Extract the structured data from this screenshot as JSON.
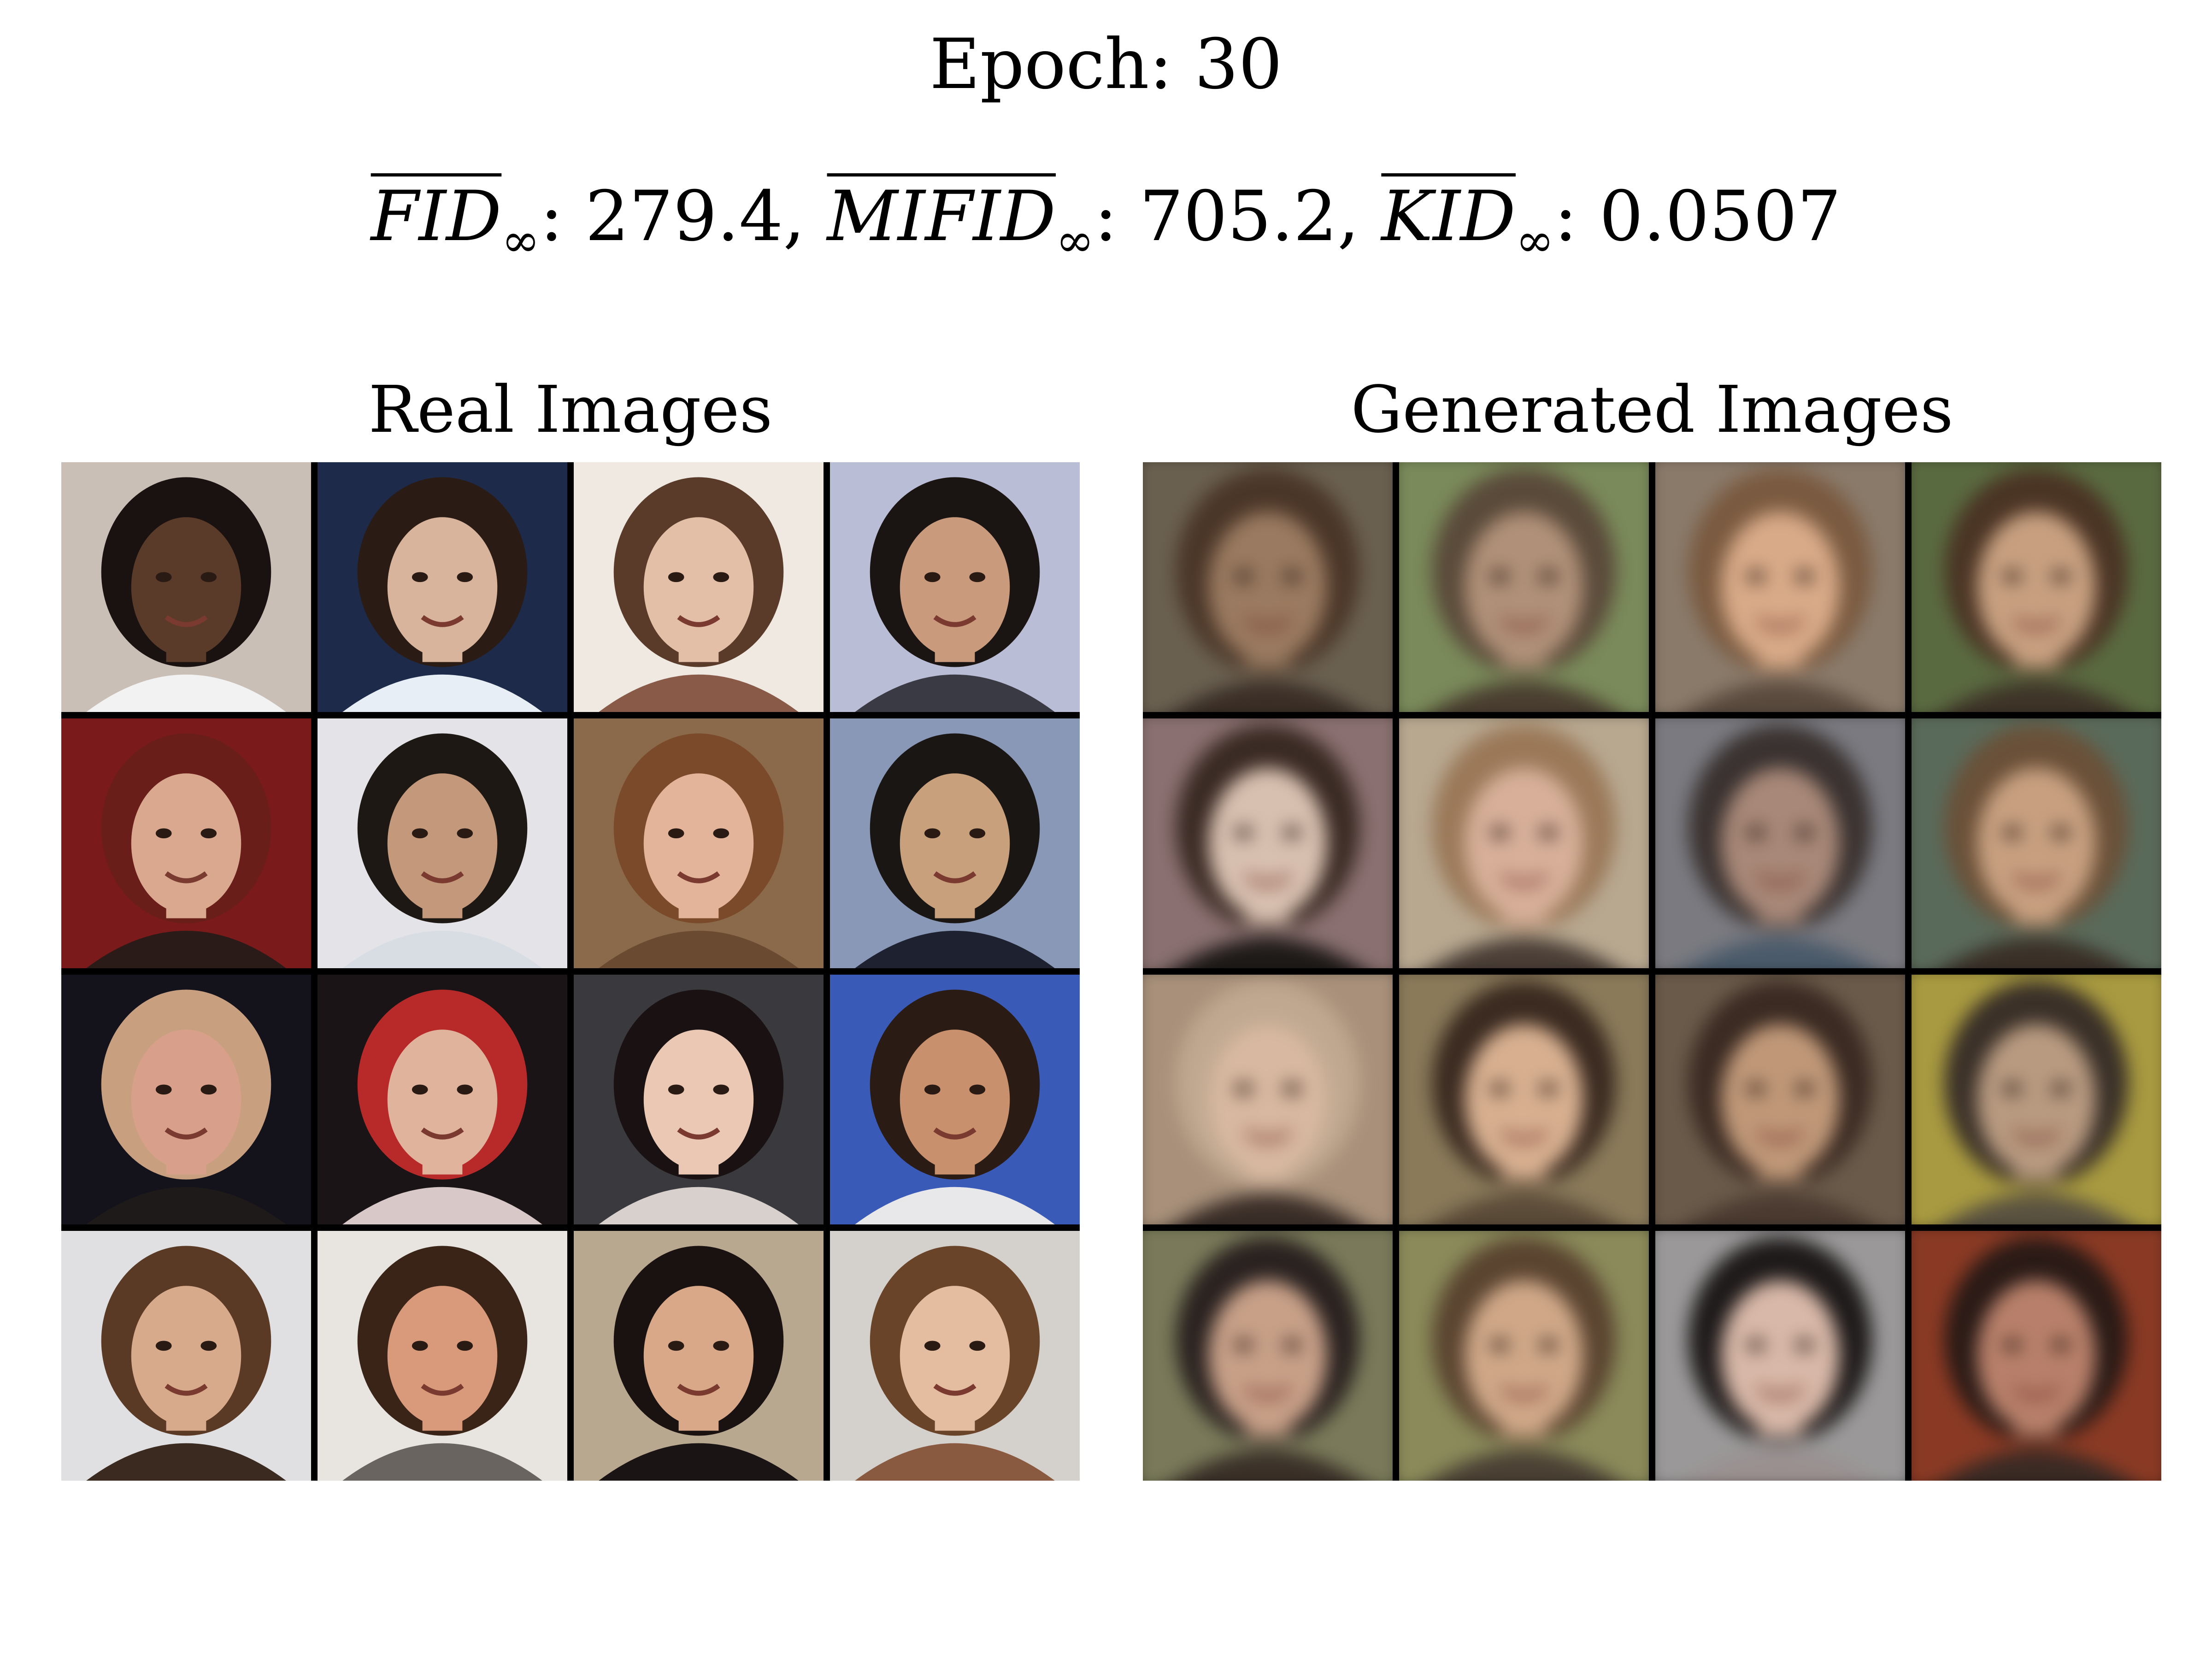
{
  "header": {
    "epoch_label": "Epoch: 30",
    "metrics": [
      {
        "name": "FID",
        "sub": "∞",
        "value": ": 279.4, "
      },
      {
        "name": "MIFID",
        "sub": "∞",
        "value": ": 705.2, "
      },
      {
        "name": "KID",
        "sub": "∞",
        "value": ": 0.0507"
      }
    ]
  },
  "panels": {
    "real_title": "Real Images",
    "generated_title": "Generated Images"
  },
  "grid": {
    "rows": 4,
    "cols": 4
  },
  "real_images": [
    {
      "bg": "#c9bfb6",
      "skin": "#5a3a28",
      "hair": "#1a1210",
      "shirt": "#f2f2f2"
    },
    {
      "bg": "#1d2a4a",
      "skin": "#d8b49c",
      "hair": "#2a1c14",
      "shirt": "#e8eef5"
    },
    {
      "bg": "#efe9e2",
      "skin": "#e4bfa8",
      "hair": "#5a3a28",
      "shirt": "#8a5a48"
    },
    {
      "bg": "#b9bdd6",
      "skin": "#c99a7c",
      "hair": "#1a1412",
      "shirt": "#3a3a44"
    },
    {
      "bg": "#7a1a1a",
      "skin": "#d9a88e",
      "hair": "#6a1e1a",
      "shirt": "#2a1a18"
    },
    {
      "bg": "#e4e4e8",
      "skin": "#c4987a",
      "hair": "#1e1814",
      "shirt": "#d8dde4"
    },
    {
      "bg": "#8a6a4a",
      "skin": "#e4b49a",
      "hair": "#7a4a2a",
      "shirt": "#6a4a30"
    },
    {
      "bg": "#8a98b8",
      "skin": "#c8a07c",
      "hair": "#1a1614",
      "shirt": "#1e2230"
    },
    {
      "bg": "#14121a",
      "skin": "#d8a08a",
      "hair": "#c8a080",
      "shirt": "#1e1a1a"
    },
    {
      "bg": "#1a1416",
      "skin": "#e0b49c",
      "hair": "#b82a2a",
      "shirt": "#d8c8c8"
    },
    {
      "bg": "#3a3a3e",
      "skin": "#eac8b4",
      "hair": "#1a1212",
      "shirt": "#d8d0cc"
    },
    {
      "bg": "#3a5ab8",
      "skin": "#c8906c",
      "hair": "#2a1c14",
      "shirt": "#e8e8ea"
    },
    {
      "bg": "#e0e0e2",
      "skin": "#d8aa8c",
      "hair": "#5a3a24",
      "shirt": "#3a2a20"
    },
    {
      "bg": "#e8e4e0",
      "skin": "#d89a7a",
      "hair": "#3a2418",
      "shirt": "#6a6460"
    },
    {
      "bg": "#b8a890",
      "skin": "#d8a888",
      "hair": "#1a1210",
      "shirt": "#1a1414"
    },
    {
      "bg": "#d4d0cc",
      "skin": "#e4bca0",
      "hair": "#6a4428",
      "shirt": "#8a5a40"
    }
  ],
  "generated_images": [
    {
      "bg": "#6a6050",
      "skin": "#9a7a60",
      "hair": "#4a3628",
      "shirt": "#3a2e26"
    },
    {
      "bg": "#7a8a5a",
      "skin": "#b09078",
      "hair": "#5a4a3a",
      "shirt": "#4a3e30"
    },
    {
      "bg": "#8a7a6a",
      "skin": "#d8aa88",
      "hair": "#7a5a40",
      "shirt": "#5a4a3e"
    },
    {
      "bg": "#5a6a40",
      "skin": "#c8a080",
      "hair": "#4a3424",
      "shirt": "#3e3428"
    },
    {
      "bg": "#8a7070",
      "skin": "#d8c0b0",
      "hair": "#3a2a24",
      "shirt": "#1e1a18"
    },
    {
      "bg": "#b8a890",
      "skin": "#d8b09a",
      "hair": "#9a7858",
      "shirt": "#4a3e36"
    },
    {
      "bg": "#7a7a80",
      "skin": "#a88878",
      "hair": "#3a3230",
      "shirt": "#4a5a6a"
    },
    {
      "bg": "#5a6a5a",
      "skin": "#c8a080",
      "hair": "#6a5038",
      "shirt": "#3a3028"
    },
    {
      "bg": "#a8907a",
      "skin": "#d8b8a0",
      "hair": "#c0a890",
      "shirt": "#3a2e28"
    },
    {
      "bg": "#8a7a5a",
      "skin": "#d8b090",
      "hair": "#3a2a20",
      "shirt": "#5a4a38"
    },
    {
      "bg": "#6a5a4a",
      "skin": "#c09878",
      "hair": "#3a2a22",
      "shirt": "#4a3a30"
    },
    {
      "bg": "#a89a40",
      "skin": "#b89a80",
      "hair": "#3a3028",
      "shirt": "#5a5240"
    },
    {
      "bg": "#7a7a5a",
      "skin": "#c8a088",
      "hair": "#2a2220",
      "shirt": "#3a3028"
    },
    {
      "bg": "#8a8a5a",
      "skin": "#d0a888",
      "hair": "#5a4430",
      "shirt": "#4a4034"
    },
    {
      "bg": "#9a9898",
      "skin": "#d8b8a8",
      "hair": "#1e1a1a",
      "shirt": "#9a9090"
    },
    {
      "bg": "#8a3a24",
      "skin": "#b8806a",
      "hair": "#2a1a16",
      "shirt": "#3a2a24"
    }
  ]
}
